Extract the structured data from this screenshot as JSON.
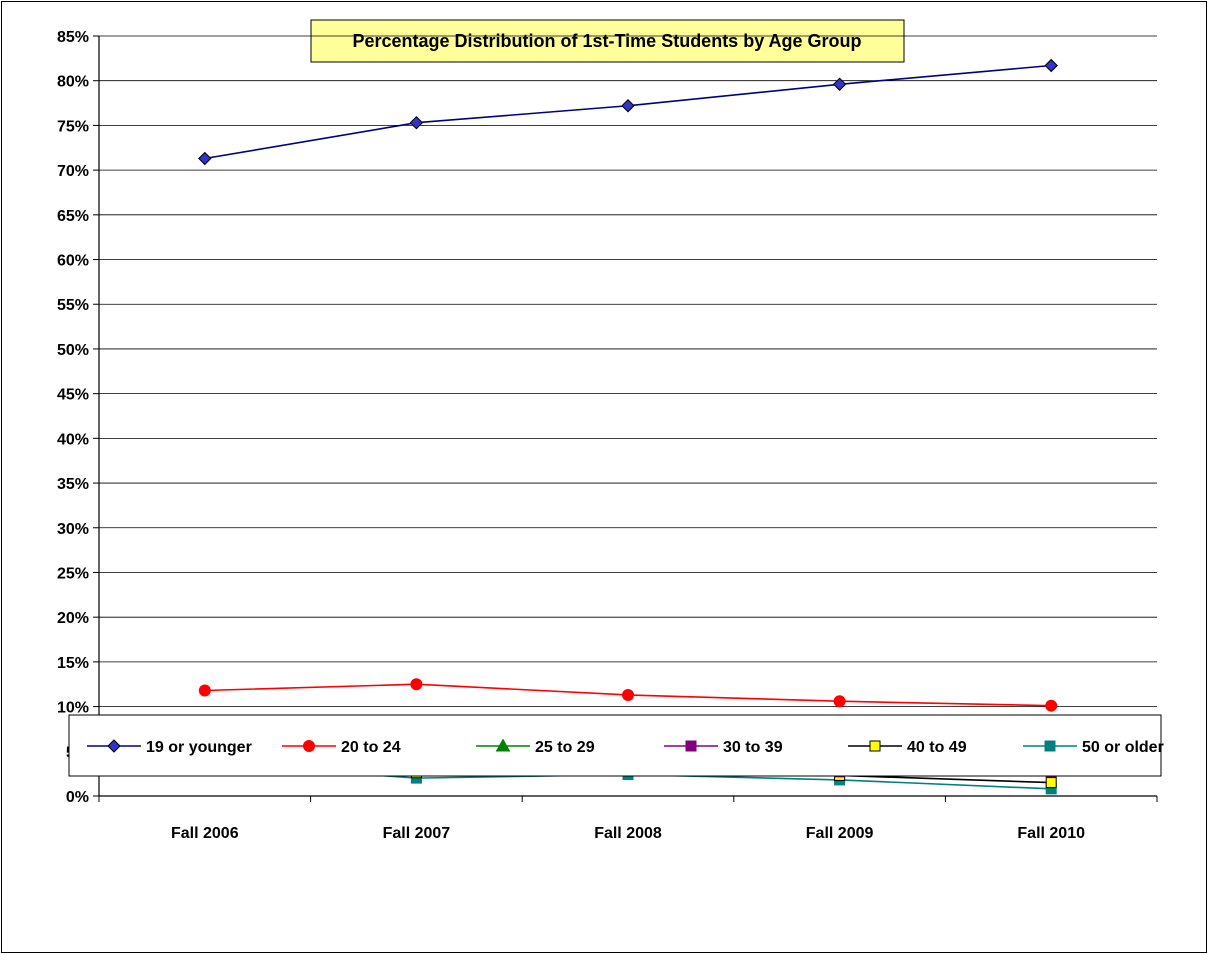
{
  "chart_data": {
    "type": "line",
    "title": "Percentage Distribution of 1st-Time Students by Age Group",
    "xlabel": "",
    "ylabel": "",
    "categories": [
      "Fall 2006",
      "Fall 2007",
      "Fall 2008",
      "Fall 2009",
      "Fall 2010"
    ],
    "y_ticks": [
      "0%",
      "5%",
      "10%",
      "15%",
      "20%",
      "25%",
      "30%",
      "35%",
      "40%",
      "45%",
      "50%",
      "55%",
      "60%",
      "65%",
      "70%",
      "75%",
      "80%",
      "85%"
    ],
    "ylim": [
      0,
      85
    ],
    "grid": true,
    "legend_position": "bottom",
    "title_background": "#ffff99",
    "series": [
      {
        "name": "19 or younger",
        "color": "#000080",
        "marker": "diamond",
        "marker_fill": "#3333cc",
        "values": [
          71.3,
          75.3,
          77.2,
          79.6,
          81.7
        ]
      },
      {
        "name": "20 to 24",
        "color": "#ff0000",
        "marker": "circle",
        "marker_fill": "#ff0000",
        "values": [
          11.8,
          12.5,
          11.3,
          10.6,
          10.1
        ]
      },
      {
        "name": "25 to 29",
        "color": "#008000",
        "marker": "triangle",
        "marker_fill": "#008000",
        "values": [
          5.1,
          4.0,
          3.7,
          3.7,
          3.7
        ]
      },
      {
        "name": "30 to 39",
        "color": "#800080",
        "marker": "square",
        "marker_fill": "#800080",
        "values": [
          4.5,
          4.2,
          3.2,
          2.7,
          2.7
        ]
      },
      {
        "name": "40 to 49",
        "color": "#000000",
        "marker": "square",
        "marker_fill": "#ffff00",
        "values": [
          4.5,
          2.6,
          2.8,
          2.3,
          1.5
        ]
      },
      {
        "name": "50 or older",
        "color": "#008080",
        "marker": "square",
        "marker_fill": "#008080",
        "values": [
          3.7,
          2.0,
          2.4,
          1.8,
          0.8
        ]
      }
    ]
  }
}
